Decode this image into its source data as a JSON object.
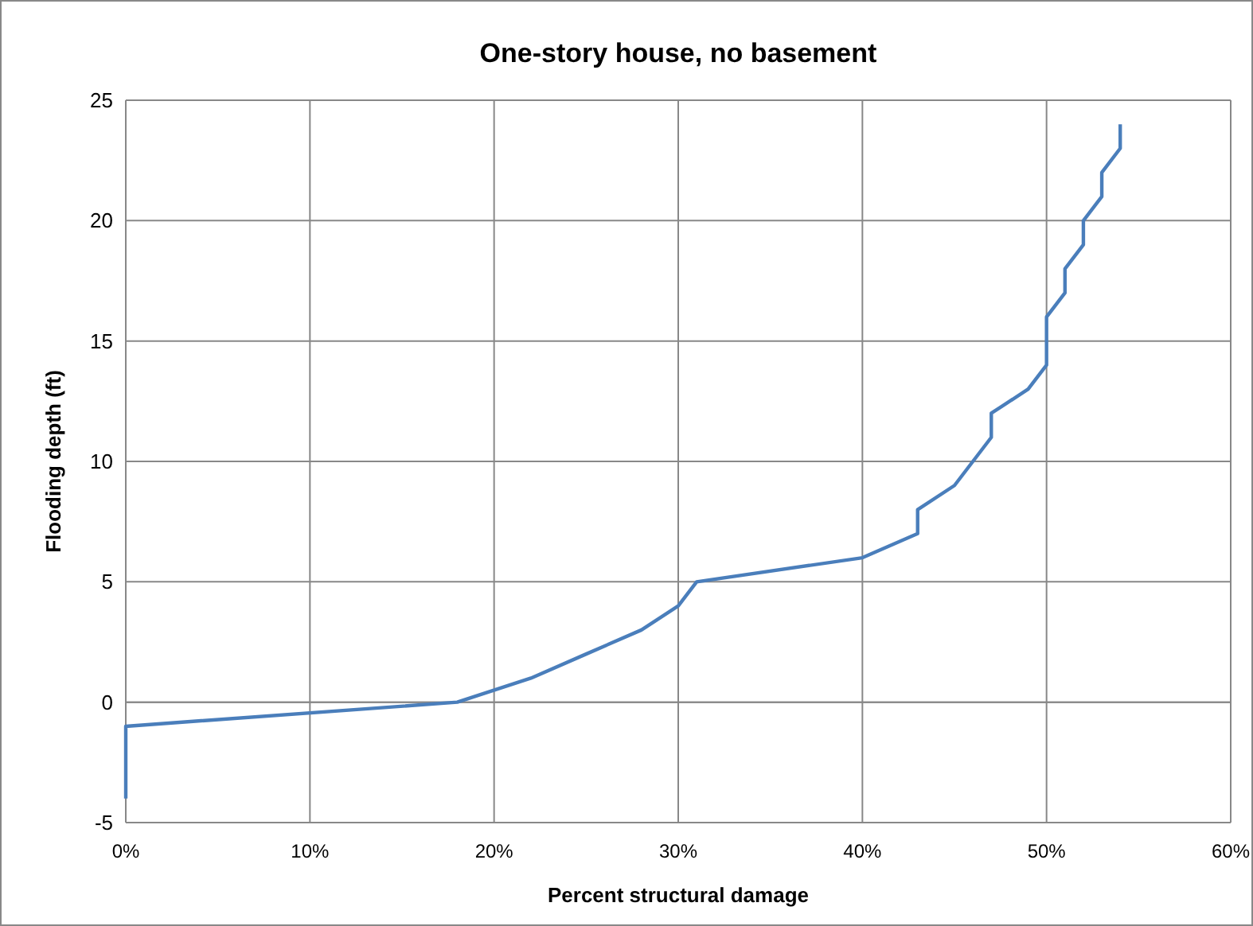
{
  "chart_data": {
    "type": "line",
    "title": "One-story house, no basement",
    "xlabel": "Percent structural damage",
    "ylabel": "Flooding depth (ft)",
    "x": [
      0,
      0,
      0,
      0,
      18,
      22,
      25,
      28,
      30,
      31,
      40,
      43,
      43,
      45,
      46,
      47,
      47,
      49,
      50,
      50,
      50,
      51,
      51,
      52,
      52,
      53,
      53,
      54,
      54
    ],
    "series": [
      {
        "color": "#4a7ebb",
        "values": [
          -4,
          -3,
          -2,
          -1,
          0,
          1,
          2,
          3,
          4,
          5,
          6,
          7,
          8,
          9,
          10,
          11,
          12,
          13,
          14,
          15,
          16,
          17,
          18,
          19,
          20,
          21,
          22,
          23,
          24
        ]
      }
    ],
    "xlim": [
      0,
      60
    ],
    "xticks": [
      {
        "value": 0,
        "label": "0%"
      },
      {
        "value": 10,
        "label": "10%"
      },
      {
        "value": 20,
        "label": "20%"
      },
      {
        "value": 30,
        "label": "30%"
      },
      {
        "value": 40,
        "label": "40%"
      },
      {
        "value": 50,
        "label": "50%"
      },
      {
        "value": 60,
        "label": "60%"
      }
    ],
    "ylim": [
      -5,
      25
    ],
    "yticks": [
      -5,
      0,
      5,
      10,
      15,
      20,
      25
    ],
    "grid": true,
    "marker": "none",
    "line_style": "solid"
  }
}
